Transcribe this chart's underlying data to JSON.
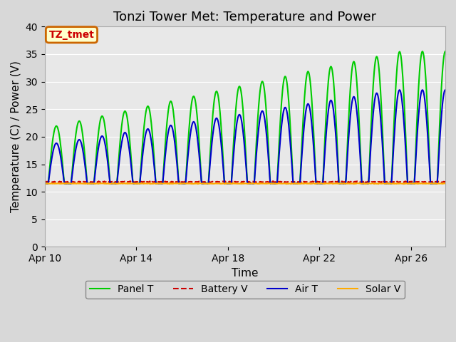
{
  "title": "Tonzi Tower Met: Temperature and Power",
  "xlabel": "Time",
  "ylabel": "Temperature (C) / Power (V)",
  "xlim_days": [
    0,
    17.5
  ],
  "ylim": [
    0,
    40
  ],
  "yticks": [
    0,
    5,
    10,
    15,
    20,
    25,
    30,
    35,
    40
  ],
  "xtick_labels": [
    "Apr 10",
    "Apr 14",
    "Apr 18",
    "Apr 22",
    "Apr 26"
  ],
  "xtick_positions": [
    0,
    4,
    8,
    12,
    16
  ],
  "background_color": "#e8e8e8",
  "grid_color": "#ffffff",
  "fig_bg_color": "#d8d8d8",
  "annotation_text": "TZ_tmet",
  "annotation_bg": "#ffffcc",
  "annotation_border": "#cc6600",
  "annotation_text_color": "#cc0000",
  "legend_entries": [
    "Panel T",
    "Battery V",
    "Air T",
    "Solar V"
  ],
  "legend_colors": [
    "#00cc00",
    "#cc0000",
    "#0000cc",
    "#ffaa00"
  ],
  "battery_v_value": 11.8,
  "solar_v_value": 11.5,
  "title_fontsize": 13,
  "label_fontsize": 11,
  "tick_fontsize": 10,
  "legend_fontsize": 10,
  "n_points": 840
}
